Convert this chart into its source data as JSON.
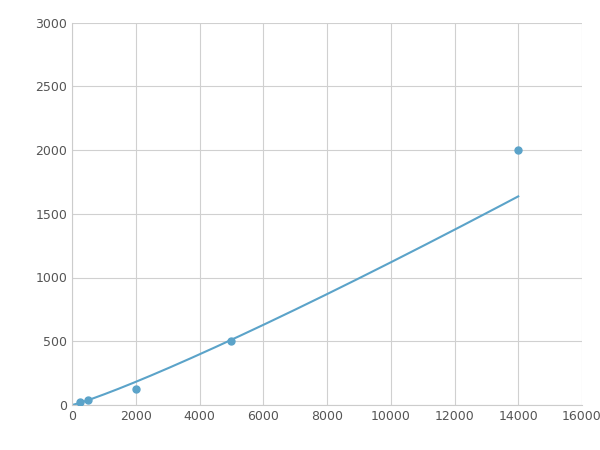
{
  "x": [
    250,
    500,
    2000,
    5000,
    14000
  ],
  "y": [
    20,
    40,
    125,
    500,
    2000
  ],
  "line_color": "#5ba3c9",
  "marker_color": "#5ba3c9",
  "marker_size": 5,
  "line_width": 1.5,
  "xlim": [
    0,
    16000
  ],
  "ylim": [
    0,
    3000
  ],
  "xticks": [
    0,
    2000,
    4000,
    6000,
    8000,
    10000,
    12000,
    14000,
    16000
  ],
  "yticks": [
    0,
    500,
    1000,
    1500,
    2000,
    2500,
    3000
  ],
  "grid_color": "#d0d0d0",
  "background_color": "#ffffff",
  "figure_bg": "#ffffff"
}
